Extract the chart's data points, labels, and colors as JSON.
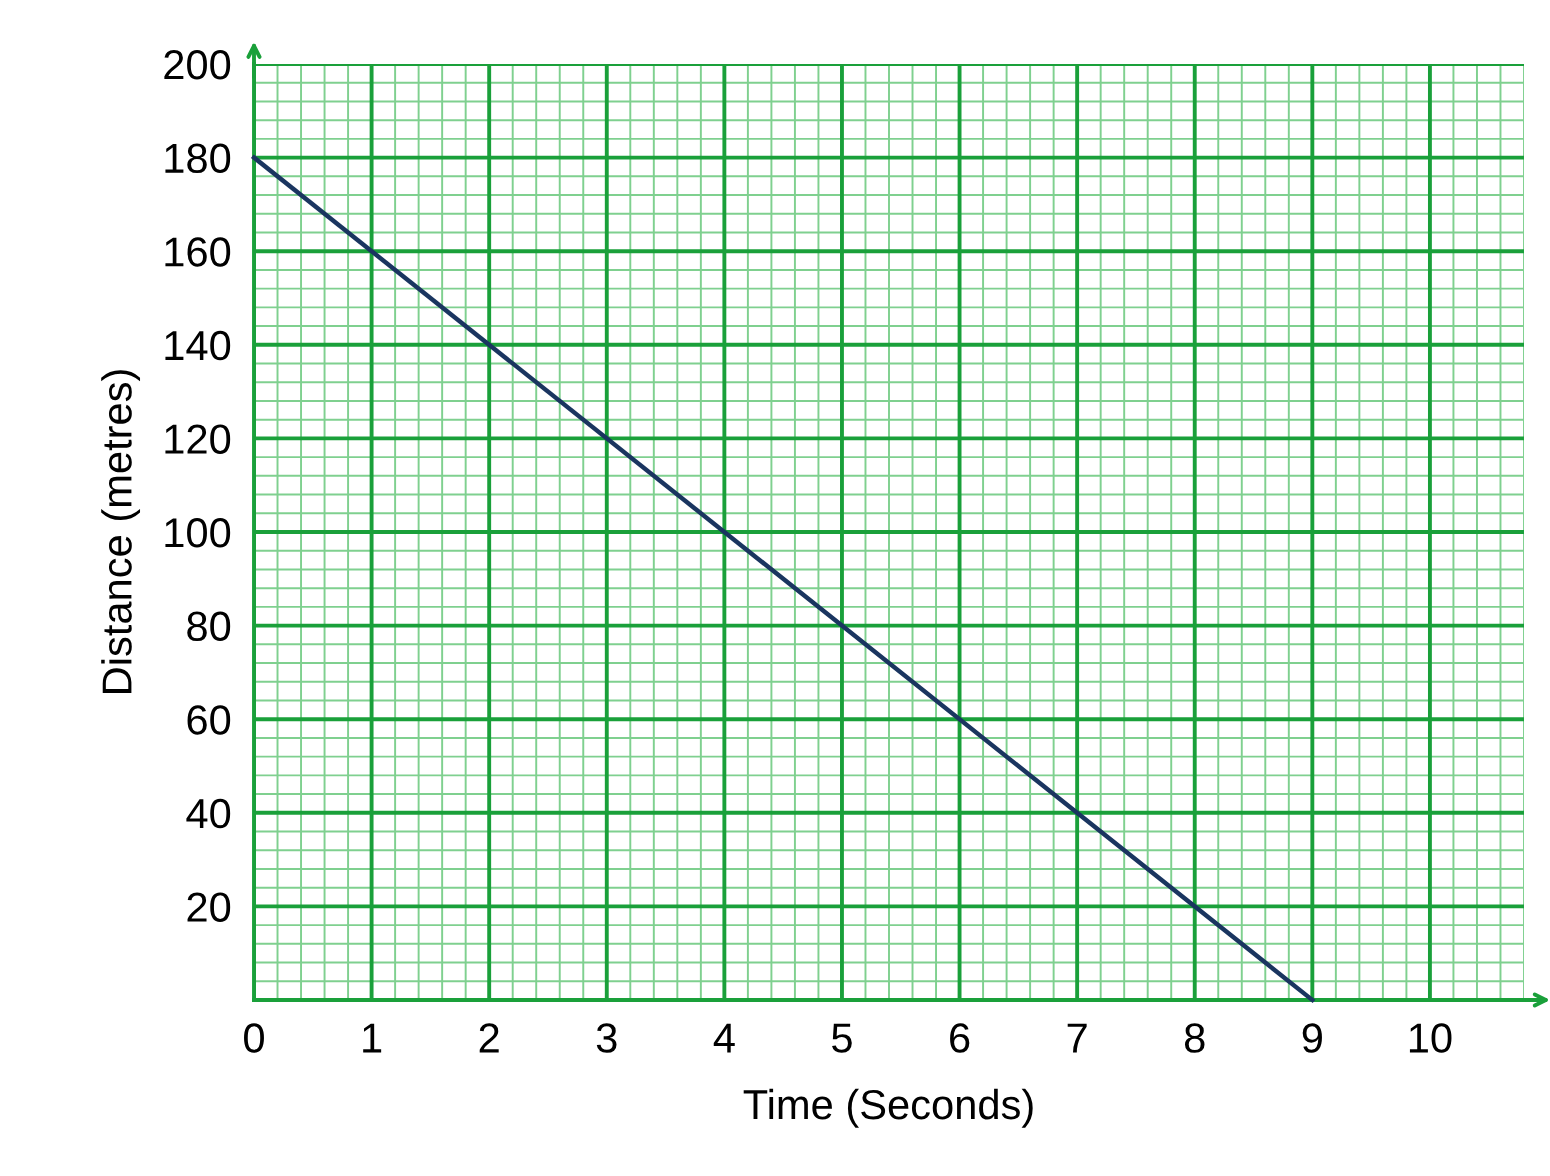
{
  "chart_data": {
    "type": "line",
    "xlabel": "Time (Seconds)",
    "ylabel": "Distance (metres)",
    "x": [
      0,
      9
    ],
    "series": [
      {
        "color": "#1a3560",
        "values": [
          180,
          0
        ]
      }
    ],
    "xlim": [
      0,
      10.8
    ],
    "ylim": [
      0,
      200
    ],
    "xticks": [
      0,
      {
        "value": 0.2,
        "label": null
      },
      {
        "value": 0.4,
        "label": null
      },
      {
        "value": 0.6,
        "label": null
      },
      {
        "value": 0.8,
        "label": null
      },
      1,
      {
        "value": 1.2,
        "label": null
      },
      {
        "value": 1.4,
        "label": null
      },
      {
        "value": 1.6,
        "label": null
      },
      {
        "value": 1.8,
        "label": null
      },
      2,
      {
        "value": 2.2,
        "label": null
      },
      {
        "value": 2.4,
        "label": null
      },
      {
        "value": 2.6,
        "label": null
      },
      {
        "value": 2.8,
        "label": null
      },
      3,
      {
        "value": 3.2,
        "label": null
      },
      {
        "value": 3.4,
        "label": null
      },
      {
        "value": 3.6,
        "label": null
      },
      {
        "value": 3.8,
        "label": null
      },
      4,
      {
        "value": 4.2,
        "label": null
      },
      {
        "value": 4.4,
        "label": null
      },
      {
        "value": 4.6,
        "label": null
      },
      {
        "value": 4.8,
        "label": null
      },
      5,
      {
        "value": 5.2,
        "label": null
      },
      {
        "value": 5.4,
        "label": null
      },
      {
        "value": 5.6,
        "label": null
      },
      {
        "value": 5.8,
        "label": null
      },
      6,
      {
        "value": 6.2,
        "label": null
      },
      {
        "value": 6.4,
        "label": null
      },
      {
        "value": 6.6,
        "label": null
      },
      {
        "value": 6.8,
        "label": null
      },
      7,
      {
        "value": 7.2,
        "label": null
      },
      {
        "value": 7.4,
        "label": null
      },
      {
        "value": 7.6,
        "label": null
      },
      {
        "value": 7.8,
        "label": null
      },
      8,
      {
        "value": 8.2,
        "label": null
      },
      {
        "value": 8.4,
        "label": null
      },
      {
        "value": 8.6,
        "label": null
      },
      {
        "value": 8.8,
        "label": null
      },
      9,
      {
        "value": 9.2,
        "label": null
      },
      {
        "value": 9.4,
        "label": null
      },
      {
        "value": 9.6,
        "label": null
      },
      {
        "value": 9.8,
        "label": null
      },
      10,
      {
        "value": 10.2,
        "label": null
      },
      {
        "value": 10.4,
        "label": null
      },
      {
        "value": 10.6,
        "label": null
      },
      {
        "value": 10.8,
        "label": null
      }
    ],
    "yticks": [
      {
        "value": 4,
        "label": null
      },
      {
        "value": 8,
        "label": null
      },
      {
        "value": 12,
        "label": null
      },
      {
        "value": 16,
        "label": null
      },
      20,
      {
        "value": 24,
        "label": null
      },
      {
        "value": 28,
        "label": null
      },
      {
        "value": 32,
        "label": null
      },
      {
        "value": 36,
        "label": null
      },
      40,
      {
        "value": 44,
        "label": null
      },
      {
        "value": 48,
        "label": null
      },
      {
        "value": 52,
        "label": null
      },
      {
        "value": 56,
        "label": null
      },
      60,
      {
        "value": 64,
        "label": null
      },
      {
        "value": 68,
        "label": null
      },
      {
        "value": 72,
        "label": null
      },
      {
        "value": 76,
        "label": null
      },
      80,
      {
        "value": 84,
        "label": null
      },
      {
        "value": 88,
        "label": null
      },
      {
        "value": 92,
        "label": null
      },
      {
        "value": 96,
        "label": null
      },
      100,
      {
        "value": 104,
        "label": null
      },
      {
        "value": 108,
        "label": null
      },
      {
        "value": 112,
        "label": null
      },
      {
        "value": 116,
        "label": null
      },
      120,
      {
        "value": 124,
        "label": null
      },
      {
        "value": 128,
        "label": null
      },
      {
        "value": 132,
        "label": null
      },
      {
        "value": 136,
        "label": null
      },
      140,
      {
        "value": 144,
        "label": null
      },
      {
        "value": 148,
        "label": null
      },
      {
        "value": 152,
        "label": null
      },
      {
        "value": 156,
        "label": null
      },
      160,
      {
        "value": 164,
        "label": null
      },
      {
        "value": 168,
        "label": null
      },
      {
        "value": 172,
        "label": null
      },
      {
        "value": 176,
        "label": null
      },
      180,
      {
        "value": 184,
        "label": null
      },
      {
        "value": 188,
        "label": null
      },
      {
        "value": 192,
        "label": null
      },
      {
        "value": 196,
        "label": null
      },
      200
    ],
    "grid": true,
    "marker": "none",
    "line_style": "solid"
  }
}
